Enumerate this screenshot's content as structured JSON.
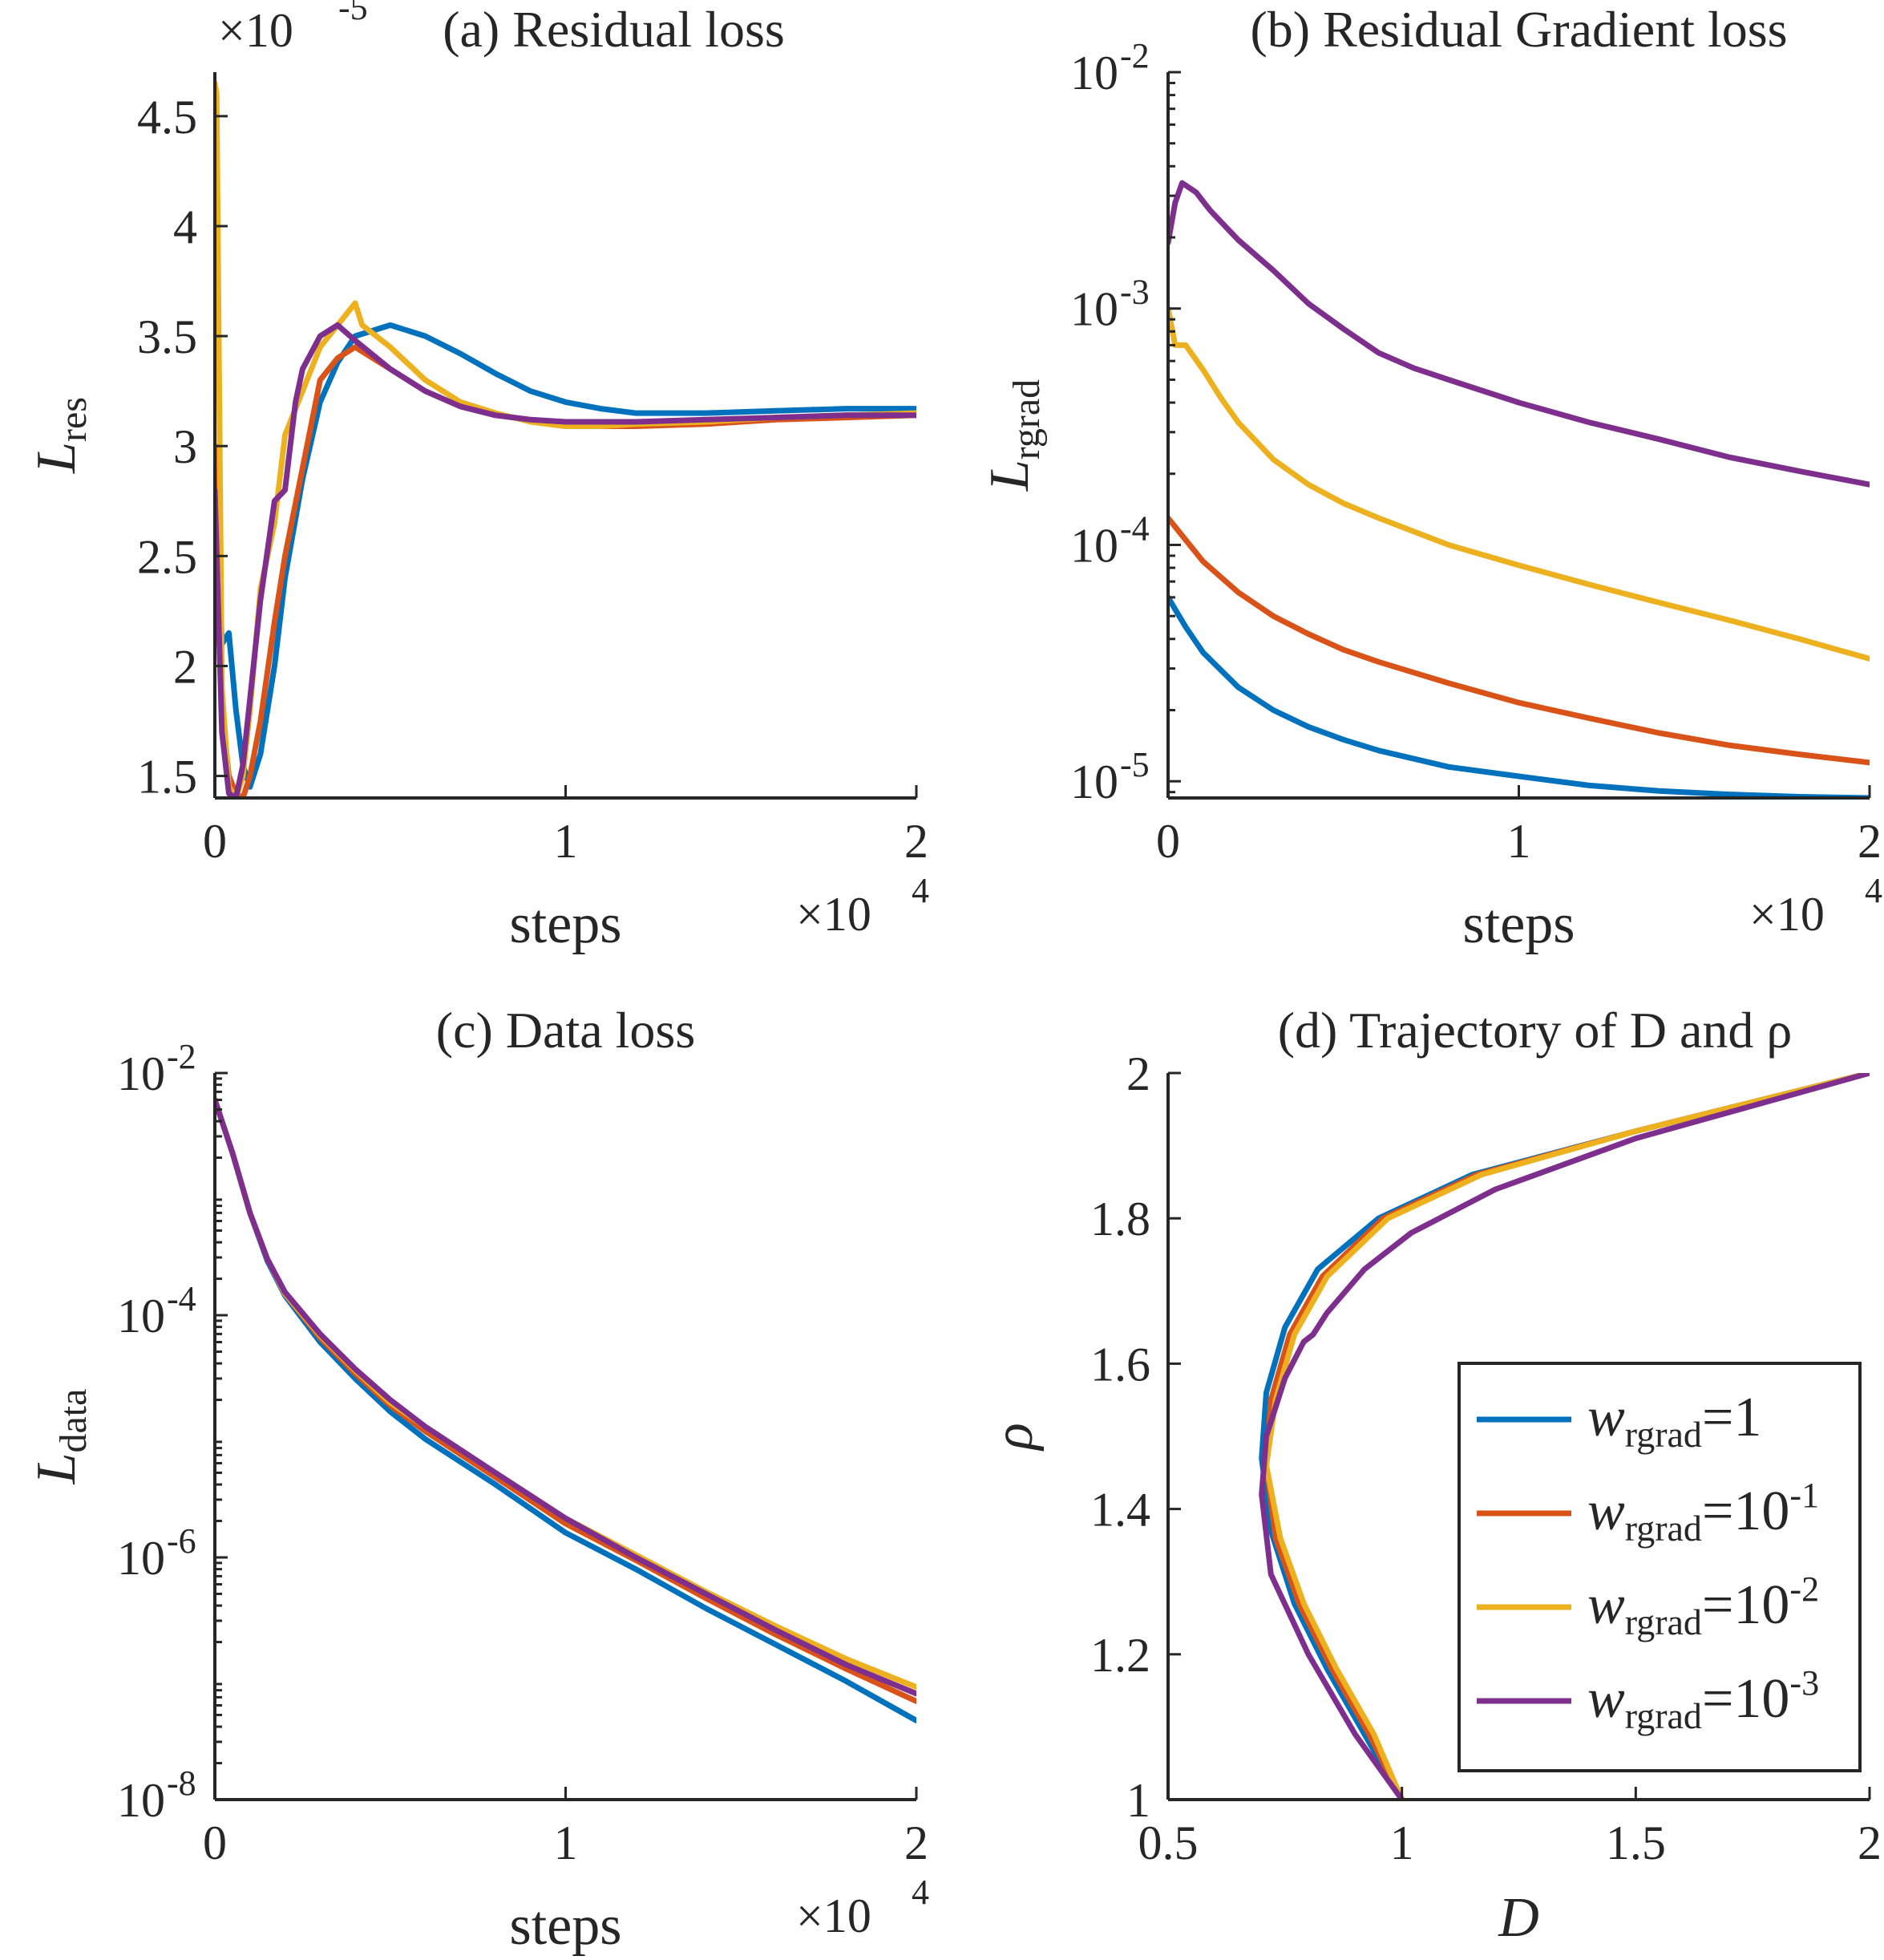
{
  "chart_data": [
    {
      "id": "a",
      "type": "line",
      "title": "(a) Residual loss",
      "xlabel": "steps",
      "ylabel_main": "L",
      "ylabel_sub": "res",
      "x_multiplier": "×10",
      "x_multiplier_exp": "4",
      "y_multiplier": "×10",
      "y_multiplier_exp": "-5",
      "yscale": "linear",
      "xlim": [
        0,
        2
      ],
      "ylim": [
        1.4,
        4.7
      ],
      "xticks": [
        {
          "v": 0,
          "label": "0"
        },
        {
          "v": 1,
          "label": "1"
        },
        {
          "v": 2,
          "label": "2"
        }
      ],
      "yticks": [
        {
          "v": 1.5,
          "label": "1.5"
        },
        {
          "v": 2,
          "label": "2"
        },
        {
          "v": 2.5,
          "label": "2.5"
        },
        {
          "v": 3,
          "label": "3"
        },
        {
          "v": 3.5,
          "label": "3.5"
        },
        {
          "v": 4,
          "label": "4"
        },
        {
          "v": 4.5,
          "label": "4.5"
        }
      ],
      "series": [
        {
          "color": "#0072BD",
          "x": [
            0,
            0.02,
            0.04,
            0.06,
            0.08,
            0.1,
            0.13,
            0.17,
            0.2,
            0.25,
            0.3,
            0.35,
            0.4,
            0.5,
            0.6,
            0.7,
            0.8,
            0.9,
            1.0,
            1.1,
            1.2,
            1.4,
            1.6,
            1.8,
            2.0
          ],
          "y": [
            3.0,
            2.1,
            2.15,
            1.8,
            1.55,
            1.45,
            1.6,
            2.0,
            2.4,
            2.85,
            3.2,
            3.38,
            3.5,
            3.55,
            3.5,
            3.42,
            3.33,
            3.25,
            3.2,
            3.17,
            3.15,
            3.15,
            3.16,
            3.17,
            3.17
          ]
        },
        {
          "color": "#D95319",
          "x": [
            0,
            0.02,
            0.04,
            0.06,
            0.08,
            0.1,
            0.13,
            0.17,
            0.2,
            0.25,
            0.3,
            0.35,
            0.4,
            0.5,
            0.6,
            0.7,
            0.8,
            0.9,
            1.0,
            1.1,
            1.2,
            1.4,
            1.6,
            1.8,
            2.0
          ],
          "y": [
            3.0,
            1.8,
            1.5,
            1.42,
            1.4,
            1.5,
            1.75,
            2.2,
            2.5,
            2.9,
            3.3,
            3.4,
            3.45,
            3.35,
            3.25,
            3.18,
            3.14,
            3.12,
            3.1,
            3.09,
            3.09,
            3.1,
            3.12,
            3.13,
            3.14
          ]
        },
        {
          "color": "#EDB120",
          "x": [
            0,
            0.005,
            0.02,
            0.04,
            0.06,
            0.08,
            0.1,
            0.13,
            0.17,
            0.2,
            0.25,
            0.3,
            0.35,
            0.4,
            0.42,
            0.5,
            0.6,
            0.7,
            0.8,
            0.9,
            1.0,
            1.1,
            1.2,
            1.4,
            1.6,
            1.8,
            2.0
          ],
          "y": [
            4.65,
            4.6,
            1.9,
            1.45,
            1.4,
            1.5,
            1.8,
            2.35,
            2.65,
            3.05,
            3.25,
            3.45,
            3.55,
            3.65,
            3.55,
            3.45,
            3.3,
            3.2,
            3.15,
            3.11,
            3.09,
            3.09,
            3.1,
            3.11,
            3.13,
            3.14,
            3.15
          ]
        },
        {
          "color": "#7E2F8E",
          "x": [
            0,
            0.02,
            0.04,
            0.06,
            0.08,
            0.1,
            0.13,
            0.17,
            0.2,
            0.23,
            0.25,
            0.3,
            0.35,
            0.4,
            0.5,
            0.6,
            0.7,
            0.8,
            0.9,
            1.0,
            1.1,
            1.2,
            1.4,
            1.6,
            1.8,
            2.0
          ],
          "y": [
            2.8,
            1.7,
            1.42,
            1.4,
            1.55,
            1.85,
            2.3,
            2.75,
            2.8,
            3.2,
            3.35,
            3.5,
            3.55,
            3.48,
            3.35,
            3.25,
            3.18,
            3.14,
            3.12,
            3.11,
            3.11,
            3.11,
            3.12,
            3.13,
            3.14,
            3.14
          ]
        }
      ]
    },
    {
      "id": "b",
      "type": "line",
      "title": "(b) Residual Gradient loss",
      "xlabel": "steps",
      "ylabel_main": "L",
      "ylabel_sub": "rgrad",
      "x_multiplier": "×10",
      "x_multiplier_exp": "4",
      "yscale": "log",
      "xlim": [
        0,
        2
      ],
      "ylim": [
        8.5e-06,
        0.01
      ],
      "xticks": [
        {
          "v": 0,
          "label": "0"
        },
        {
          "v": 1,
          "label": "1"
        },
        {
          "v": 2,
          "label": "2"
        }
      ],
      "yticks": [
        {
          "v": 1e-05,
          "base": "10",
          "exp": "-5"
        },
        {
          "v": 0.0001,
          "base": "10",
          "exp": "-4"
        },
        {
          "v": 0.001,
          "base": "10",
          "exp": "-3"
        },
        {
          "v": 0.01,
          "base": "10",
          "exp": "-2"
        }
      ],
      "series": [
        {
          "color": "#0072BD",
          "x": [
            0,
            0.05,
            0.1,
            0.2,
            0.3,
            0.4,
            0.5,
            0.6,
            0.8,
            1.0,
            1.2,
            1.4,
            1.6,
            1.8,
            2.0
          ],
          "y": [
            6e-05,
            4.5e-05,
            3.5e-05,
            2.5e-05,
            2e-05,
            1.7e-05,
            1.5e-05,
            1.35e-05,
            1.15e-05,
            1.05e-05,
            9.6e-06,
            9.1e-06,
            8.8e-06,
            8.6e-06,
            8.5e-06
          ]
        },
        {
          "color": "#D95319",
          "x": [
            0,
            0.05,
            0.1,
            0.2,
            0.3,
            0.4,
            0.5,
            0.6,
            0.8,
            1.0,
            1.2,
            1.4,
            1.6,
            1.8,
            2.0
          ],
          "y": [
            0.00013,
            0.000105,
            8.5e-05,
            6.3e-05,
            5e-05,
            4.2e-05,
            3.6e-05,
            3.2e-05,
            2.6e-05,
            2.15e-05,
            1.85e-05,
            1.6e-05,
            1.42e-05,
            1.3e-05,
            1.2e-05
          ]
        },
        {
          "color": "#EDB120",
          "x": [
            0,
            0.02,
            0.05,
            0.1,
            0.15,
            0.2,
            0.3,
            0.4,
            0.5,
            0.6,
            0.8,
            1.0,
            1.2,
            1.4,
            1.6,
            1.8,
            2.0
          ],
          "y": [
            0.001,
            0.0007,
            0.0007,
            0.00055,
            0.00042,
            0.00033,
            0.00023,
            0.00018,
            0.00015,
            0.00013,
            0.0001,
            8.2e-05,
            6.8e-05,
            5.7e-05,
            4.8e-05,
            4e-05,
            3.3e-05
          ]
        },
        {
          "color": "#7E2F8E",
          "x": [
            0,
            0.02,
            0.04,
            0.08,
            0.12,
            0.2,
            0.3,
            0.4,
            0.5,
            0.6,
            0.7,
            0.8,
            1.0,
            1.2,
            1.4,
            1.6,
            1.8,
            2.0
          ],
          "y": [
            0.0019,
            0.0028,
            0.0034,
            0.0031,
            0.0026,
            0.00195,
            0.00145,
            0.00105,
            0.00082,
            0.00065,
            0.00056,
            0.0005,
            0.0004,
            0.00033,
            0.00028,
            0.000235,
            0.000205,
            0.00018
          ]
        }
      ]
    },
    {
      "id": "c",
      "type": "line",
      "title": "(c) Data loss",
      "xlabel": "steps",
      "ylabel_main": "L",
      "ylabel_sub": "data",
      "x_multiplier": "×10",
      "x_multiplier_exp": "4",
      "yscale": "log",
      "xlim": [
        0,
        2
      ],
      "ylim": [
        1e-08,
        0.01
      ],
      "xticks": [
        {
          "v": 0,
          "label": "0"
        },
        {
          "v": 1,
          "label": "1"
        },
        {
          "v": 2,
          "label": "2"
        }
      ],
      "yticks": [
        {
          "v": 1e-08,
          "base": "10",
          "exp": "-8"
        },
        {
          "v": 1e-06,
          "base": "10",
          "exp": "-6"
        },
        {
          "v": 0.0001,
          "base": "10",
          "exp": "-4"
        },
        {
          "v": 0.01,
          "base": "10",
          "exp": "-2"
        }
      ],
      "series": [
        {
          "color": "#0072BD",
          "x": [
            0,
            0.05,
            0.1,
            0.15,
            0.2,
            0.3,
            0.4,
            0.5,
            0.6,
            0.8,
            1.0,
            1.2,
            1.4,
            1.6,
            1.8,
            2.0
          ],
          "y": [
            0.006,
            0.0022,
            0.0007,
            0.00028,
            0.000145,
            6e-05,
            3e-05,
            1.6e-05,
            9.5e-06,
            4e-06,
            1.6e-06,
            8e-07,
            3.8e-07,
            1.9e-07,
            9.5e-08,
            4.5e-08
          ]
        },
        {
          "color": "#D95319",
          "x": [
            0,
            0.05,
            0.1,
            0.15,
            0.2,
            0.3,
            0.4,
            0.5,
            0.6,
            0.8,
            1.0,
            1.2,
            1.4,
            1.6,
            1.8,
            2.0
          ],
          "y": [
            0.006,
            0.0022,
            0.0007,
            0.00029,
            0.00015,
            6.5e-05,
            3.3e-05,
            1.8e-05,
            1.1e-05,
            4.6e-06,
            1.9e-06,
            9.5e-07,
            4.6e-07,
            2.3e-07,
            1.2e-07,
            6.5e-08
          ]
        },
        {
          "color": "#EDB120",
          "x": [
            0,
            0.05,
            0.1,
            0.15,
            0.2,
            0.3,
            0.4,
            0.5,
            0.6,
            0.8,
            1.0,
            1.2,
            1.4,
            1.6,
            1.8,
            2.0
          ],
          "y": [
            0.006,
            0.0022,
            0.0007,
            0.00029,
            0.00015,
            6.8e-05,
            3.5e-05,
            1.9e-05,
            1.2e-05,
            5e-06,
            2.1e-06,
            1.05e-06,
            5.2e-07,
            2.7e-07,
            1.45e-07,
            8.5e-08
          ]
        },
        {
          "color": "#7E2F8E",
          "x": [
            0,
            0.05,
            0.1,
            0.15,
            0.2,
            0.3,
            0.4,
            0.5,
            0.6,
            0.8,
            1.0,
            1.2,
            1.4,
            1.6,
            1.8,
            2.0
          ],
          "y": [
            0.006,
            0.0022,
            0.0007,
            0.00029,
            0.000155,
            7e-05,
            3.6e-05,
            2e-05,
            1.2e-05,
            5e-06,
            2.1e-06,
            1e-06,
            5e-07,
            2.5e-07,
            1.3e-07,
            7.5e-08
          ]
        }
      ]
    },
    {
      "id": "d",
      "type": "line",
      "title": "(d)  Trajectory  of  D  and  ρ",
      "xlabel": "D",
      "ylabel": "ρ",
      "yscale": "linear",
      "xlim": [
        0.5,
        2
      ],
      "ylim": [
        1,
        2
      ],
      "xticks": [
        {
          "v": 0.5,
          "label": "0.5"
        },
        {
          "v": 1,
          "label": "1"
        },
        {
          "v": 1.5,
          "label": "1.5"
        },
        {
          "v": 2,
          "label": "2"
        }
      ],
      "yticks": [
        {
          "v": 1,
          "label": "1"
        },
        {
          "v": 1.2,
          "label": "1.2"
        },
        {
          "v": 1.4,
          "label": "1.4"
        },
        {
          "v": 1.6,
          "label": "1.6"
        },
        {
          "v": 1.8,
          "label": "1.8"
        },
        {
          "v": 2,
          "label": "2"
        }
      ],
      "legend": {
        "position": "lower-right",
        "entries": [
          {
            "main": "w",
            "sub": "rgrad",
            "value": "=1",
            "exp": "",
            "color": "#0072BD"
          },
          {
            "main": "w",
            "sub": "rgrad",
            "value": "=10",
            "exp": "-1",
            "color": "#D95319"
          },
          {
            "main": "w",
            "sub": "rgrad",
            "value": "=10",
            "exp": "-2",
            "color": "#EDB120"
          },
          {
            "main": "w",
            "sub": "rgrad",
            "value": "=10",
            "exp": "-3",
            "color": "#7E2F8E"
          }
        ]
      },
      "series": [
        {
          "color": "#0072BD",
          "x": [
            1.0,
            0.92,
            0.84,
            0.77,
            0.72,
            0.7,
            0.71,
            0.75,
            0.82,
            0.95,
            1.15,
            1.5,
            2.0
          ],
          "y": [
            1.0,
            1.09,
            1.18,
            1.27,
            1.37,
            1.47,
            1.56,
            1.65,
            1.73,
            1.8,
            1.86,
            1.92,
            2.0
          ]
        },
        {
          "color": "#D95319",
          "x": [
            1.0,
            0.93,
            0.85,
            0.78,
            0.73,
            0.71,
            0.72,
            0.76,
            0.83,
            0.96,
            1.16,
            1.5,
            2.0
          ],
          "y": [
            1.0,
            1.09,
            1.18,
            1.27,
            1.36,
            1.46,
            1.55,
            1.64,
            1.72,
            1.8,
            1.86,
            1.92,
            2.0
          ]
        },
        {
          "color": "#EDB120",
          "x": [
            1.0,
            0.94,
            0.86,
            0.79,
            0.74,
            0.71,
            0.73,
            0.77,
            0.84,
            0.97,
            1.17,
            1.5,
            2.0
          ],
          "y": [
            1.0,
            1.09,
            1.18,
            1.27,
            1.36,
            1.46,
            1.55,
            1.64,
            1.72,
            1.8,
            1.86,
            1.92,
            2.0
          ]
        },
        {
          "color": "#7E2F8E",
          "x": [
            1.0,
            0.9,
            0.8,
            0.72,
            0.7,
            0.71,
            0.75,
            0.79,
            0.81,
            0.84,
            0.92,
            1.02,
            1.2,
            1.5,
            2.0
          ],
          "y": [
            1.0,
            1.09,
            1.2,
            1.31,
            1.42,
            1.5,
            1.58,
            1.63,
            1.64,
            1.67,
            1.73,
            1.78,
            1.84,
            1.91,
            2.0
          ]
        }
      ]
    }
  ]
}
